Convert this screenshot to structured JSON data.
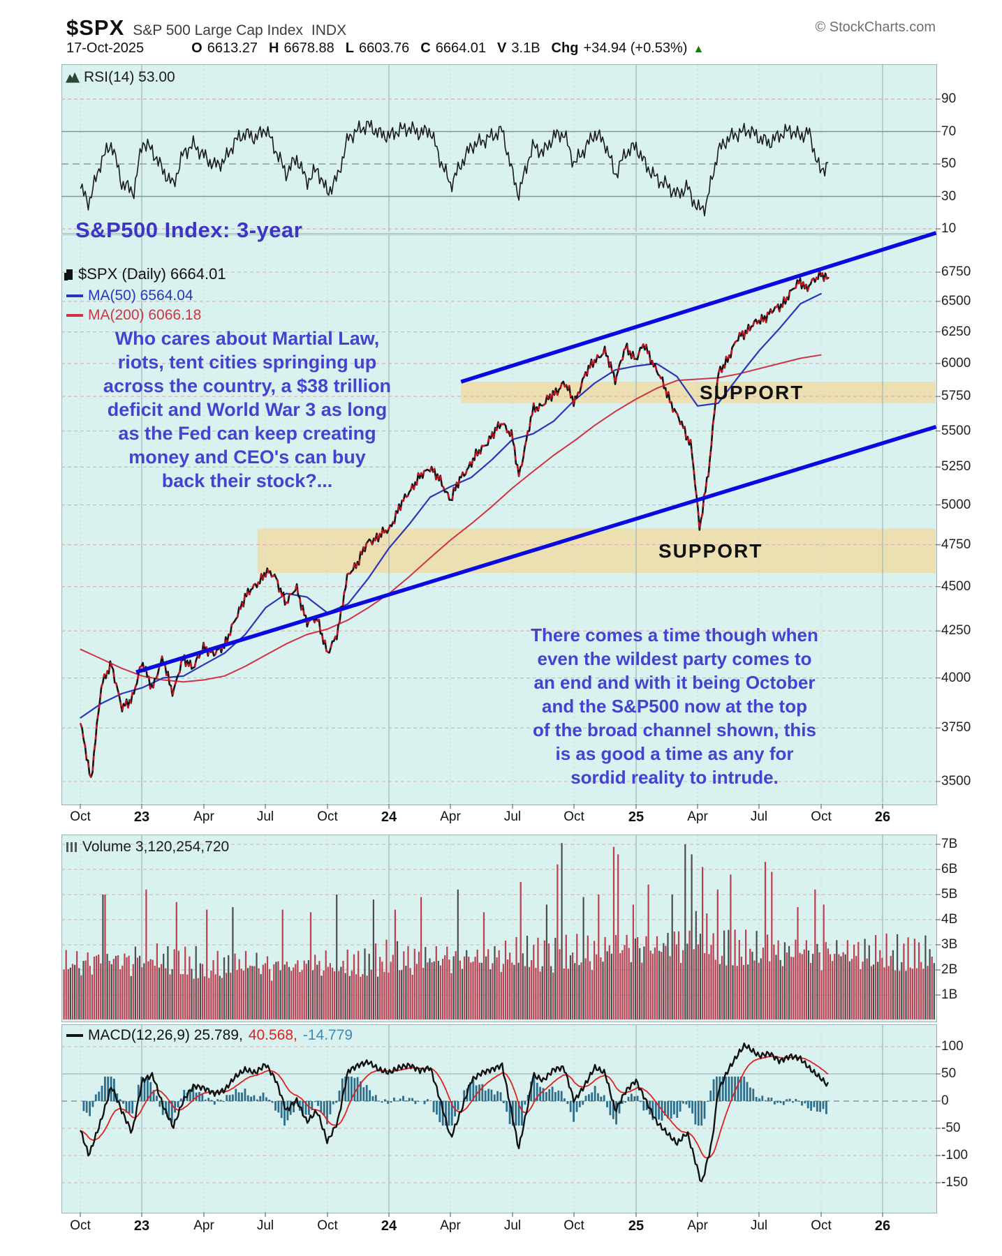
{
  "header": {
    "symbol": "$SPX",
    "name": "S&P 500 Large Cap Index",
    "exchange": "INDX",
    "copyright": "© StockCharts.com",
    "date": "17-Oct-2025",
    "quote": {
      "o_label": "O",
      "o": "6613.27",
      "h_label": "H",
      "h": "6678.88",
      "l_label": "L",
      "l": "6603.76",
      "c_label": "C",
      "c": "6664.01",
      "v_label": "V",
      "v": "3.1B",
      "chg_label": "Chg",
      "chg": "+34.94 (+0.53%)",
      "direction_icon": "▲"
    }
  },
  "rsi_panel": {
    "label": "RSI(14) 53.00",
    "axis": [
      "90",
      "70",
      "50",
      "30",
      "10"
    ]
  },
  "main_panel": {
    "title": "S&P500 Index: 3-year",
    "legend": {
      "spx": "$SPX (Daily) 6664.01",
      "ma50": "MA(50) 6564.04",
      "ma200": "MA(200) 6066.18"
    },
    "annotation1": "Who cares about Martial Law,\nriots, tent cities springing up\nacross the country, a $38 trillion\ndeficit and World War 3 as long\nas the Fed can keep creating\nmoney and CEO's can buy\nback their stock?...",
    "annotation2": "There comes a time though when\neven the wildest party comes to\nan end and with it being October\nand the S&P500 now at the top\nof the broad channel shown, this\nis as good a time as any for\nsordid reality to intrude.",
    "support_label_1": "SUPPORT",
    "support_label_2": "SUPPORT",
    "axis": [
      "6750",
      "6500",
      "6250",
      "6000",
      "5750",
      "5500",
      "5250",
      "5000",
      "4750",
      "4500",
      "4250",
      "4000",
      "3750",
      "3500"
    ],
    "x_axis": [
      "Oct",
      "23",
      "Apr",
      "Jul",
      "Oct",
      "24",
      "Apr",
      "Jul",
      "Oct",
      "25",
      "Apr",
      "Jul",
      "Oct",
      "26"
    ]
  },
  "volume_panel": {
    "label": "Volume 3,120,254,720",
    "axis": [
      "7B",
      "6B",
      "5B",
      "4B",
      "3B",
      "2B",
      "1B"
    ]
  },
  "macd_panel": {
    "label_main": "MACD(12,26,9) 25.789,",
    "label_signal": "40.568,",
    "label_hist": "-14.779",
    "axis": [
      "100",
      "50",
      "0",
      "-50",
      "-100",
      "-150"
    ]
  },
  "colors": {
    "panel_bg": "#d9f1ef",
    "grid_pink": "#d9aeae",
    "grid_gray": "#9fb6b6",
    "price": "#141414",
    "price_fleck": "#cc1122",
    "ma50": "#2936b8",
    "ma200": "#cf3344",
    "channel": "#0a0ae0",
    "support_band": "#ecdfb2",
    "annotation": "#4343cf",
    "volume_bar": "#bb4050",
    "volume_bar_dark": "#4d4d4d",
    "macd_line": "#111111",
    "macd_signal": "#e02020",
    "macd_hist": "#2d6e8d",
    "up_green": "#157a15"
  },
  "chart_data": [
    {
      "type": "line",
      "name": "RSI(14)",
      "panel": "rsi",
      "ylim": [
        10,
        90
      ],
      "x_unit": "months_from_Oct-2022",
      "last": 53.0,
      "points": [
        [
          0,
          35
        ],
        [
          0.4,
          26
        ],
        [
          1,
          52
        ],
        [
          1.5,
          63
        ],
        [
          2,
          38
        ],
        [
          2.6,
          33
        ],
        [
          3,
          64
        ],
        [
          3.5,
          58
        ],
        [
          4,
          46
        ],
        [
          4.5,
          37
        ],
        [
          5,
          57
        ],
        [
          5.5,
          62
        ],
        [
          6,
          55
        ],
        [
          6.5,
          49
        ],
        [
          7,
          52
        ],
        [
          7.5,
          64
        ],
        [
          8,
          69
        ],
        [
          8.5,
          66
        ],
        [
          9,
          72
        ],
        [
          9.5,
          58
        ],
        [
          10,
          44
        ],
        [
          10.5,
          54
        ],
        [
          11,
          39
        ],
        [
          11.5,
          47
        ],
        [
          12,
          32
        ],
        [
          12.5,
          42
        ],
        [
          13,
          66
        ],
        [
          13.5,
          71
        ],
        [
          14,
          74
        ],
        [
          14.5,
          69
        ],
        [
          15,
          67
        ],
        [
          15.5,
          71
        ],
        [
          16,
          72
        ],
        [
          16.5,
          69
        ],
        [
          17,
          71
        ],
        [
          17.5,
          52
        ],
        [
          18,
          37
        ],
        [
          18.5,
          50
        ],
        [
          19,
          61
        ],
        [
          19.5,
          64
        ],
        [
          20,
          67
        ],
        [
          20.5,
          71
        ],
        [
          21,
          44
        ],
        [
          21.3,
          31
        ],
        [
          21.8,
          54
        ],
        [
          22,
          61
        ],
        [
          22.5,
          57
        ],
        [
          23,
          67
        ],
        [
          23.5,
          69
        ],
        [
          24,
          50
        ],
        [
          24.5,
          59
        ],
        [
          25,
          69
        ],
        [
          25.5,
          63
        ],
        [
          26,
          43
        ],
        [
          26.5,
          57
        ],
        [
          27,
          61
        ],
        [
          27.5,
          49
        ],
        [
          28,
          41
        ],
        [
          28.5,
          37
        ],
        [
          29,
          31
        ],
        [
          29.5,
          36
        ],
        [
          30,
          22
        ],
        [
          30.4,
          24
        ],
        [
          31,
          58
        ],
        [
          31.5,
          66
        ],
        [
          32,
          69
        ],
        [
          32.5,
          71
        ],
        [
          33,
          66
        ],
        [
          33.5,
          63
        ],
        [
          34,
          68
        ],
        [
          34.5,
          71
        ],
        [
          35,
          67
        ],
        [
          35.4,
          70
        ],
        [
          36,
          44
        ],
        [
          36.4,
          53
        ]
      ]
    },
    {
      "type": "candlestick",
      "name": "$SPX Daily",
      "panel": "main",
      "scale": "log",
      "ylim": [
        3500,
        6750
      ],
      "x_unit": "months_from_Oct-2022",
      "last_ohlc": {
        "open": 6613.27,
        "high": 6678.88,
        "low": 6603.76,
        "close": 6664.01
      },
      "close_points": [
        [
          0,
          3770
        ],
        [
          0.5,
          3500
        ],
        [
          1,
          3950
        ],
        [
          1.5,
          4080
        ],
        [
          2,
          3840
        ],
        [
          2.5,
          3900
        ],
        [
          3,
          4077
        ],
        [
          3.5,
          3950
        ],
        [
          4,
          4100
        ],
        [
          4.5,
          3920
        ],
        [
          5,
          4109
        ],
        [
          5.5,
          4050
        ],
        [
          6,
          4169
        ],
        [
          6.5,
          4120
        ],
        [
          7,
          4180
        ],
        [
          7.5,
          4300
        ],
        [
          8,
          4450
        ],
        [
          8.5,
          4500
        ],
        [
          9,
          4589
        ],
        [
          9.5,
          4550
        ],
        [
          10,
          4400
        ],
        [
          10.5,
          4500
        ],
        [
          11,
          4288
        ],
        [
          11.5,
          4330
        ],
        [
          12,
          4117
        ],
        [
          12.5,
          4250
        ],
        [
          13,
          4568
        ],
        [
          13.5,
          4650
        ],
        [
          14,
          4770
        ],
        [
          14.5,
          4800
        ],
        [
          15,
          4846
        ],
        [
          15.5,
          4980
        ],
        [
          16,
          5096
        ],
        [
          16.5,
          5180
        ],
        [
          17,
          5254
        ],
        [
          17.5,
          5150
        ],
        [
          18,
          5036
        ],
        [
          18.5,
          5180
        ],
        [
          19,
          5278
        ],
        [
          19.5,
          5380
        ],
        [
          20,
          5460
        ],
        [
          20.5,
          5570
        ],
        [
          21,
          5450
        ],
        [
          21.3,
          5186
        ],
        [
          22,
          5648
        ],
        [
          22.5,
          5700
        ],
        [
          23,
          5762
        ],
        [
          23.5,
          5860
        ],
        [
          24,
          5705
        ],
        [
          24.5,
          5900
        ],
        [
          25,
          6032
        ],
        [
          25.5,
          6090
        ],
        [
          26,
          5882
        ],
        [
          26.5,
          6120
        ],
        [
          27,
          6041
        ],
        [
          27.4,
          6144
        ],
        [
          28,
          5955
        ],
        [
          28.5,
          5780
        ],
        [
          29,
          5612
        ],
        [
          29.7,
          5400
        ],
        [
          30.1,
          4835
        ],
        [
          30.6,
          5300
        ],
        [
          31,
          5912
        ],
        [
          31.5,
          6050
        ],
        [
          32,
          6205
        ],
        [
          32.5,
          6280
        ],
        [
          33,
          6339
        ],
        [
          33.5,
          6400
        ],
        [
          34,
          6460
        ],
        [
          34.5,
          6560
        ],
        [
          35,
          6688
        ],
        [
          35.3,
          6600
        ],
        [
          36,
          6750
        ],
        [
          36.4,
          6664
        ]
      ]
    },
    {
      "type": "line",
      "name": "MA(50)",
      "panel": "main",
      "x_start": 0,
      "x_step": 1,
      "last": 6564.04,
      "values": [
        3800,
        3870,
        3920,
        3950,
        4000,
        4010,
        4070,
        4130,
        4230,
        4380,
        4460,
        4440,
        4350,
        4400,
        4550,
        4730,
        4880,
        5050,
        5120,
        5180,
        5300,
        5440,
        5480,
        5570,
        5720,
        5850,
        5950,
        5980,
        6000,
        5900,
        5680,
        5700,
        5900,
        6100,
        6280,
        6480,
        6564
      ]
    },
    {
      "type": "line",
      "name": "MA(200)",
      "panel": "main",
      "x_start": 0,
      "x_step": 1,
      "last": 6066.18,
      "values": [
        4150,
        4100,
        4050,
        4010,
        3990,
        3980,
        3990,
        4010,
        4060,
        4120,
        4180,
        4230,
        4260,
        4310,
        4380,
        4460,
        4560,
        4670,
        4780,
        4880,
        4990,
        5110,
        5220,
        5330,
        5430,
        5540,
        5640,
        5730,
        5810,
        5870,
        5880,
        5890,
        5920,
        5960,
        6000,
        6040,
        6066
      ]
    },
    {
      "type": "bar",
      "name": "Volume",
      "panel": "volume",
      "unit": "billions_of_shares",
      "ylim": [
        0,
        7
      ],
      "x_start": 0,
      "x_step": 1,
      "last": 3.12025472,
      "monthly_avg": [
        2.6,
        2.8,
        2.7,
        2.9,
        2.8,
        2.7,
        2.6,
        2.5,
        2.6,
        2.5,
        2.4,
        2.5,
        2.6,
        2.6,
        2.7,
        2.9,
        2.8,
        2.8,
        2.9,
        2.8,
        2.9,
        3.0,
        3.1,
        3.0,
        3.1,
        3.2,
        3.3,
        3.4,
        3.3,
        3.6,
        4.0,
        3.6,
        3.3,
        3.2,
        3.1,
        3.2,
        3.1
      ],
      "spikes": [
        [
          1.1,
          5.0
        ],
        [
          3.2,
          5.2
        ],
        [
          4.6,
          4.7
        ],
        [
          6.1,
          4.4
        ],
        [
          7.4,
          4.5
        ],
        [
          9.8,
          4.4
        ],
        [
          11.2,
          4.3
        ],
        [
          12.4,
          5.0
        ],
        [
          14.2,
          4.8
        ],
        [
          15.3,
          4.4
        ],
        [
          16.5,
          4.9
        ],
        [
          18.3,
          5.2
        ],
        [
          19.6,
          4.3
        ],
        [
          21.4,
          5.5
        ],
        [
          22.6,
          4.6
        ],
        [
          23.2,
          6.2
        ],
        [
          23.4,
          7.05
        ],
        [
          24.4,
          4.9
        ],
        [
          25.2,
          5.0
        ],
        [
          25.9,
          6.9
        ],
        [
          26.1,
          6.6
        ],
        [
          26.8,
          4.6
        ],
        [
          27.6,
          5.4
        ],
        [
          28.7,
          5.0
        ],
        [
          29.4,
          7.0
        ],
        [
          29.7,
          6.6
        ],
        [
          30.2,
          6.1
        ],
        [
          30.9,
          5.2
        ],
        [
          31.6,
          5.8
        ],
        [
          33.3,
          6.3
        ],
        [
          33.6,
          5.9
        ],
        [
          34.8,
          4.5
        ],
        [
          35.7,
          5.2
        ],
        [
          36.1,
          4.6
        ]
      ]
    },
    {
      "type": "line",
      "name": "MACD(12,26,9)",
      "panel": "macd",
      "ylim": [
        -150,
        100
      ],
      "x_unit": "months_from_Oct-2022",
      "last_macd": 25.789,
      "last_signal": 40.568,
      "last_histogram": -14.779,
      "macd_points": [
        [
          0,
          -55
        ],
        [
          0.4,
          -100
        ],
        [
          1,
          -35
        ],
        [
          1.5,
          28
        ],
        [
          2,
          -18
        ],
        [
          2.5,
          -58
        ],
        [
          3,
          38
        ],
        [
          3.5,
          48
        ],
        [
          4,
          -8
        ],
        [
          4.5,
          -48
        ],
        [
          5,
          2
        ],
        [
          5.5,
          28
        ],
        [
          6,
          24
        ],
        [
          6.5,
          14
        ],
        [
          7,
          20
        ],
        [
          7.5,
          44
        ],
        [
          8,
          58
        ],
        [
          8.5,
          52
        ],
        [
          9,
          68
        ],
        [
          9.5,
          38
        ],
        [
          10,
          -18
        ],
        [
          10.5,
          2
        ],
        [
          11,
          -38
        ],
        [
          11.5,
          -18
        ],
        [
          12,
          -75
        ],
        [
          12.5,
          -38
        ],
        [
          13,
          55
        ],
        [
          13.5,
          66
        ],
        [
          14,
          72
        ],
        [
          14.5,
          58
        ],
        [
          15,
          52
        ],
        [
          15.5,
          62
        ],
        [
          16,
          66
        ],
        [
          16.5,
          56
        ],
        [
          17,
          62
        ],
        [
          17.5,
          0
        ],
        [
          18,
          -68
        ],
        [
          18.5,
          -18
        ],
        [
          19,
          38
        ],
        [
          19.5,
          52
        ],
        [
          20,
          58
        ],
        [
          20.5,
          66
        ],
        [
          21,
          -28
        ],
        [
          21.3,
          -88
        ],
        [
          21.8,
          2
        ],
        [
          22,
          48
        ],
        [
          22.5,
          38
        ],
        [
          23,
          58
        ],
        [
          23.5,
          62
        ],
        [
          24,
          0
        ],
        [
          24.5,
          28
        ],
        [
          25,
          62
        ],
        [
          25.5,
          52
        ],
        [
          26,
          -18
        ],
        [
          26.5,
          18
        ],
        [
          27,
          38
        ],
        [
          27.5,
          0
        ],
        [
          28,
          -38
        ],
        [
          28.5,
          -58
        ],
        [
          29,
          -78
        ],
        [
          29.5,
          -58
        ],
        [
          30,
          -125
        ],
        [
          30.2,
          -152
        ],
        [
          30.7,
          -75
        ],
        [
          31,
          18
        ],
        [
          31.5,
          58
        ],
        [
          32,
          88
        ],
        [
          32.3,
          103
        ],
        [
          33,
          83
        ],
        [
          33.5,
          88
        ],
        [
          34,
          73
        ],
        [
          34.5,
          83
        ],
        [
          35,
          78
        ],
        [
          35.5,
          58
        ],
        [
          36,
          42
        ],
        [
          36.4,
          26
        ]
      ]
    },
    {
      "type": "annotation",
      "name": "trend-channel",
      "panel": "main",
      "lines": [
        {
          "from_month": 2.7,
          "from_price": 4030,
          "to_month": 41.6,
          "to_price": 5530
        },
        {
          "from_month": 18.5,
          "from_price": 5860,
          "to_month": 41.6,
          "to_price": 7100
        }
      ]
    },
    {
      "type": "annotation",
      "name": "support-zones",
      "panel": "main",
      "zones": [
        {
          "price_low": 5700,
          "price_high": 5860,
          "from_month": 18.5
        },
        {
          "price_low": 4580,
          "price_high": 4850,
          "from_month": 8.6
        }
      ]
    }
  ]
}
